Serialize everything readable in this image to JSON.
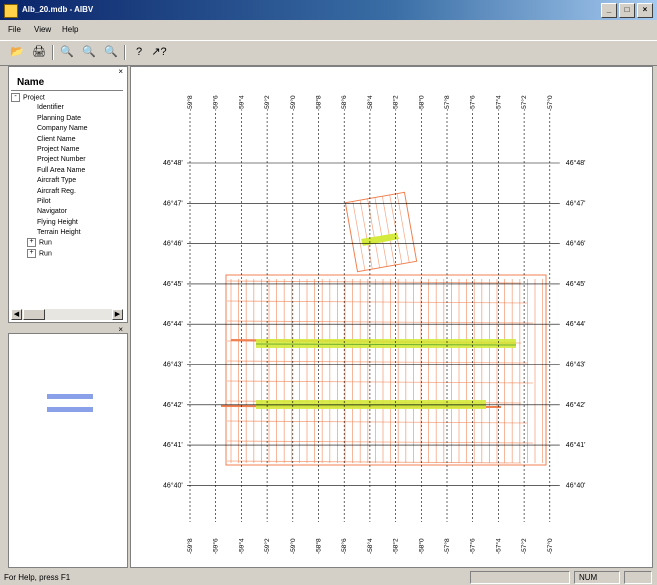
{
  "window": {
    "title": "Alb_20.mdb - AIBV",
    "min": "_",
    "max": "□",
    "close": "×"
  },
  "menu": {
    "file": "File",
    "view": "View",
    "help": "Help"
  },
  "toolbar": {
    "icons": [
      "open-icon",
      "print-icon",
      "zoom-out-icon",
      "zoom-in-icon",
      "zoom-fit-icon",
      "info-icon",
      "help-pointer-icon"
    ]
  },
  "tree": {
    "header": "Name",
    "root": "Project",
    "children": [
      "Identifier",
      "Planning Date",
      "Company Name",
      "Client Name",
      "Project Name",
      "Project Number",
      "Full Area Name",
      "Aircraft Type",
      "Aircraft Reg.",
      "Pilot",
      "Navigator",
      "Flying Height",
      "Terrain Height"
    ],
    "runs": [
      "Run",
      "Run"
    ]
  },
  "map": {
    "lat_labels": [
      "46°48'",
      "46°47'",
      "46°46'",
      "46°45'",
      "46°44'",
      "46°43'",
      "46°42'",
      "46°41'",
      "46°40'"
    ],
    "lon_labels": [
      "-59°8",
      "-59°6",
      "-59°4",
      "-59°2",
      "-59°0",
      "-58°8",
      "-58°6",
      "-58°4",
      "-58°2",
      "-58°0",
      "-57°8",
      "-57°6",
      "-57°4",
      "-57°2",
      "-57°0"
    ],
    "colors": {
      "grid": "#000000",
      "flight_lines": "#f08050",
      "coverage": "#d4ea3c",
      "coverage_dark": "#6fb030"
    }
  },
  "status": {
    "help": "For Help, press F1",
    "num": "NUM"
  }
}
